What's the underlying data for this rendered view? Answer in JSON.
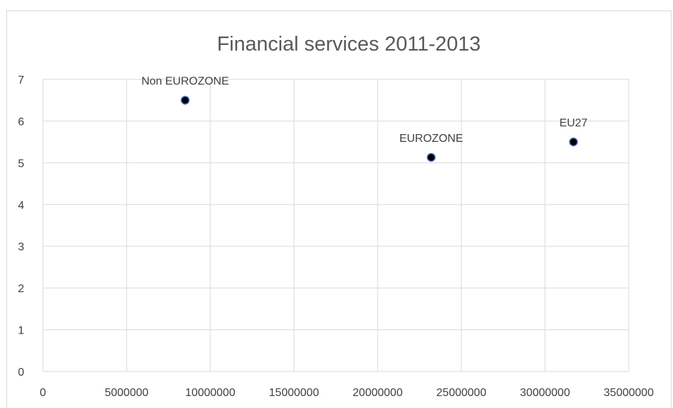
{
  "chart_data": {
    "type": "scatter",
    "title": "Financial services 2011-2013",
    "xlabel": "",
    "ylabel": "",
    "xlim": [
      0,
      35000000
    ],
    "ylim": [
      0,
      7
    ],
    "x_ticks": [
      "0",
      "5000000",
      "10000000",
      "15000000",
      "20000000",
      "25000000",
      "30000000",
      "35000000"
    ],
    "y_ticks": [
      "0",
      "1",
      "2",
      "3",
      "4",
      "5",
      "6",
      "7"
    ],
    "grid": true,
    "legend": "none",
    "series": [
      {
        "points": [
          {
            "label": "Non EUROZONE",
            "x": 8500000,
            "y": 6.5
          },
          {
            "label": "EUROZONE",
            "x": 23200000,
            "y": 5.13
          },
          {
            "label": "EU27",
            "x": 31700000,
            "y": 5.5
          }
        ]
      }
    ],
    "colors": {
      "marker_fill": "#000000",
      "marker_stroke": "#4472c4",
      "grid": "#d9d9d9",
      "text": "#404040",
      "title": "#595959"
    }
  }
}
